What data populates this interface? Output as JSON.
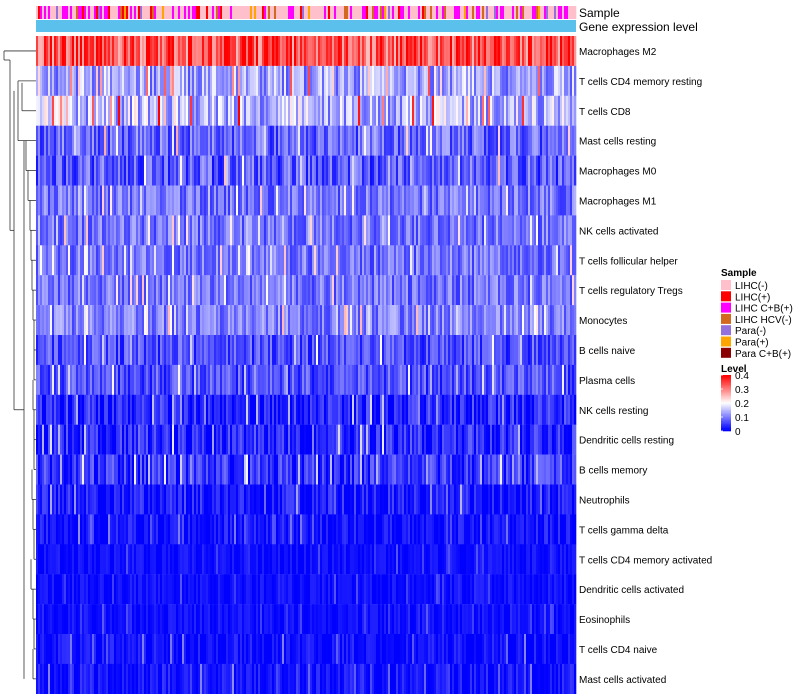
{
  "chart_data": {
    "type": "heatmap",
    "title": "",
    "annotation_tracks": [
      "Sample",
      "Gene expression level"
    ],
    "row_labels": [
      "Macrophages M2",
      "T cells CD4 memory resting",
      "T cells CD8",
      "Mast cells resting",
      "Macrophages M0",
      "Macrophages M1",
      "NK cells activated",
      "T cells follicular helper",
      "T cells regulatory  Tregs",
      "Monocytes",
      "B cells naive",
      "Plasma cells",
      "NK cells resting",
      "Dendritic cells resting",
      "B cells memory",
      "Neutrophils",
      "T cells gamma delta",
      "T cells CD4 memory activated",
      "Dendritic cells activated",
      "Eosinophils",
      "T cells CD4 naive",
      "Mast cells activated"
    ],
    "row_mean_levels": [
      0.33,
      0.13,
      0.15,
      0.08,
      0.07,
      0.09,
      0.09,
      0.09,
      0.09,
      0.1,
      0.06,
      0.06,
      0.03,
      0.03,
      0.04,
      0.02,
      0.015,
      0.01,
      0.01,
      0.01,
      0.01,
      0.015
    ],
    "row_variability": [
      0.08,
      0.07,
      0.08,
      0.06,
      0.06,
      0.05,
      0.05,
      0.05,
      0.05,
      0.05,
      0.05,
      0.05,
      0.05,
      0.05,
      0.05,
      0.04,
      0.03,
      0.02,
      0.02,
      0.02,
      0.03,
      0.03
    ],
    "legend": {
      "sample_title": "Sample",
      "sample_entries": [
        {
          "label": "LIHC(-)",
          "color": "#ffc0cb"
        },
        {
          "label": "LIHC(+)",
          "color": "#ff0000"
        },
        {
          "label": "LIHC C+B(+)",
          "color": "#ff00ff"
        },
        {
          "label": "LIHC HCV(-)",
          "color": "#d2691e"
        },
        {
          "label": "Para(-)",
          "color": "#9370db"
        },
        {
          "label": "Para(+)",
          "color": "#ffa500"
        },
        {
          "label": "Para C+B(+)",
          "color": "#8b0000"
        }
      ],
      "level_title": "Level",
      "level_ticks": [
        "0.4",
        "0.3",
        "0.2",
        "0.1",
        "0"
      ],
      "level_tick_values": [
        0.4,
        0.3,
        0.2,
        0.1,
        0
      ],
      "level_range": [
        0,
        0.4
      ]
    },
    "sample_track_colors": [
      "#ffc0cb",
      "#ff00ff",
      "#ff0000",
      "#d2691e",
      "#9370db",
      "#ffa500"
    ],
    "gene_expression_track_color": "#5bc0eb",
    "color_scale": {
      "low": "#0000ff",
      "mid": "#ffffff",
      "high": "#ff0000"
    }
  }
}
